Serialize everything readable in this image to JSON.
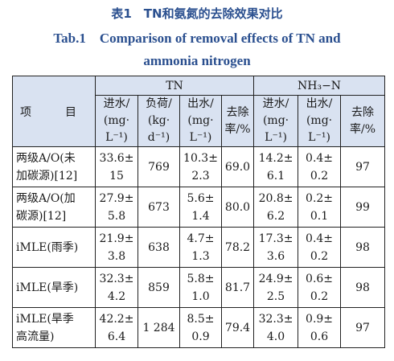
{
  "caption": {
    "cn": "表1　TN和氨氮的去除效果对比",
    "en_line1": "Tab.1　Comparison of removal effects of TN and",
    "en_line2": "ammonia nitrogen"
  },
  "table": {
    "item_header": "项　目",
    "group_tn": "TN",
    "group_nh3": "NH₃−N",
    "tn_cols": [
      [
        "进水/",
        "(mg·",
        "L⁻¹)"
      ],
      [
        "负荷/",
        "(kg·",
        "d⁻¹)"
      ],
      [
        "出水/",
        "(mg·",
        "L⁻¹)"
      ],
      [
        "去除",
        "率/%",
        ""
      ]
    ],
    "nh3_cols": [
      [
        "进水/",
        "(mg·",
        "L⁻¹)"
      ],
      [
        "出水/",
        "(mg·",
        "L⁻¹)"
      ],
      [
        "去除",
        "率/%",
        ""
      ]
    ],
    "rows": [
      {
        "proj1": "两级A/O(未",
        "proj2": "加碳源)[12]",
        "tn_in1": "33.6±",
        "tn_in2": "15",
        "load": "769",
        "tn_out1": "10.3±",
        "tn_out2": "2.3",
        "tn_rate": "69.0",
        "nh_in1": "14.2±",
        "nh_in2": "6.1",
        "nh_out1": "0.4±",
        "nh_out2": "0.2",
        "nh_rate": "97"
      },
      {
        "proj1": "两级A/O(加",
        "proj2": "碳源)[12]",
        "tn_in1": "27.9±",
        "tn_in2": "5.8",
        "load": "673",
        "tn_out1": "5.6±",
        "tn_out2": "1.4",
        "tn_rate": "80.0",
        "nh_in1": "20.8±",
        "nh_in2": "6.2",
        "nh_out1": "0.2±",
        "nh_out2": "0.1",
        "nh_rate": "99"
      },
      {
        "proj1": "iMLE(雨季)",
        "proj2": "",
        "tn_in1": "21.9±",
        "tn_in2": "3.8",
        "load": "638",
        "tn_out1": "4.7±",
        "tn_out2": "1.3",
        "tn_rate": "78.2",
        "nh_in1": "17.3±",
        "nh_in2": "3.6",
        "nh_out1": "0.4±",
        "nh_out2": "0.2",
        "nh_rate": "98"
      },
      {
        "proj1": "iMLE(旱季)",
        "proj2": "",
        "tn_in1": "32.3±",
        "tn_in2": "4.2",
        "load": "859",
        "tn_out1": "5.8±",
        "tn_out2": "1.0",
        "tn_rate": "81.7",
        "nh_in1": "24.9±",
        "nh_in2": "2.5",
        "nh_out1": "0.6±",
        "nh_out2": "0.2",
        "nh_rate": "98"
      },
      {
        "proj1": "iMLE(旱季",
        "proj2": "高流量)",
        "tn_in1": "42.2±",
        "tn_in2": "6.4",
        "load": "1 284",
        "tn_out1": "8.5±",
        "tn_out2": "0.9",
        "tn_rate": "79.4",
        "nh_in1": "32.3±",
        "nh_in2": "4.0",
        "nh_out1": "0.9±",
        "nh_out2": "0.6",
        "nh_rate": "97"
      }
    ]
  }
}
